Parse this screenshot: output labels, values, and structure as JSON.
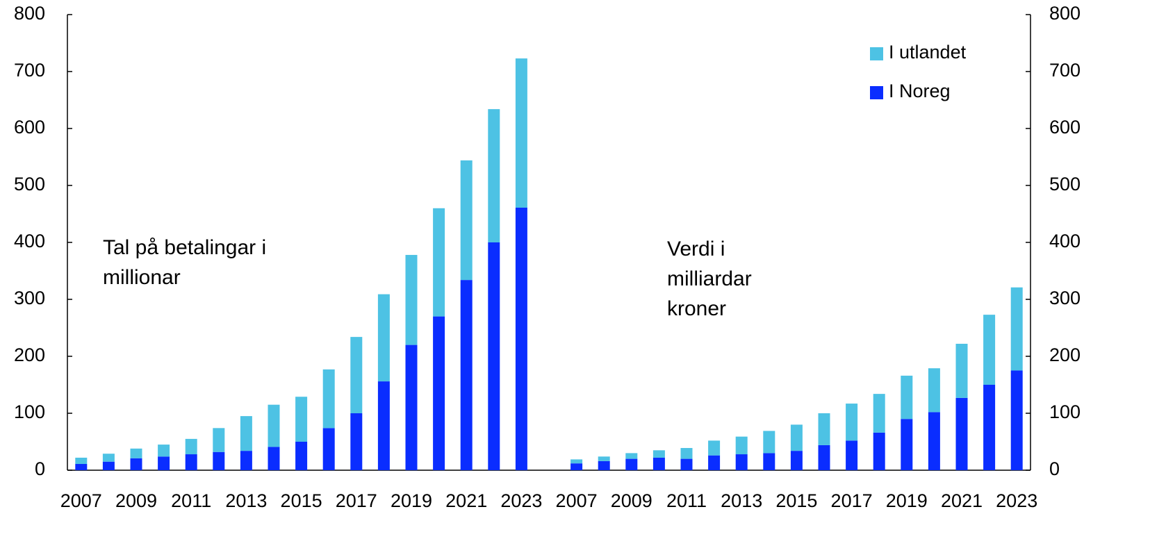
{
  "chart_data": {
    "type": "stacked_bar",
    "categories": [
      "2007",
      null,
      "2009",
      null,
      "2011",
      null,
      "2013",
      null,
      "2015",
      null,
      "2017",
      null,
      "2019",
      null,
      "2021",
      null,
      "2023",
      null,
      "2007",
      null,
      "2009",
      null,
      "2011",
      null,
      "2013",
      null,
      "2015",
      null,
      "2017",
      null,
      "2019",
      null,
      "2021",
      null,
      "2023"
    ],
    "series": [
      {
        "name": "I Noreg",
        "color": "#0a2dff",
        "values": [
          11,
          15,
          21,
          24,
          28,
          32,
          34,
          41,
          50,
          74,
          100,
          156,
          220,
          270,
          334,
          400,
          461,
          null,
          12,
          16,
          20,
          22,
          20,
          26,
          28,
          30,
          34,
          44,
          52,
          66,
          90,
          102,
          127,
          150,
          175
        ]
      },
      {
        "name": "I utlandet",
        "color": "#4dc2e4",
        "values": [
          11,
          14,
          17,
          21,
          27,
          42,
          61,
          74,
          79,
          103,
          134,
          153,
          158,
          190,
          210,
          234,
          262,
          null,
          7,
          8,
          10,
          13,
          19,
          26,
          31,
          39,
          46,
          56,
          65,
          68,
          76,
          77,
          95,
          123,
          146
        ]
      }
    ],
    "annotations": [
      [
        "Tal på betalingar i",
        "millionar"
      ],
      [
        "Verdi i",
        "milliardar",
        "kroner"
      ]
    ],
    "ylim": [
      0,
      800
    ],
    "yticks": [
      0,
      100,
      200,
      300,
      400,
      500,
      600,
      700,
      800
    ],
    "y2lim": [
      0,
      800
    ],
    "y2ticks": [
      0,
      100,
      200,
      300,
      400,
      500,
      600,
      700,
      800
    ],
    "legend": "top-right",
    "grid": false
  }
}
